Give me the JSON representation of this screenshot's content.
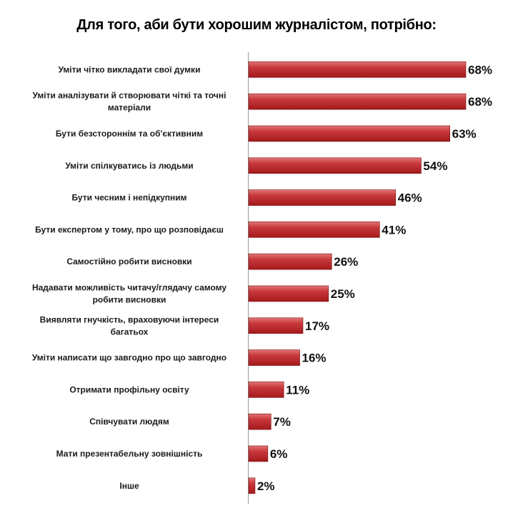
{
  "chart_data": {
    "type": "bar",
    "orientation": "horizontal",
    "title": "Для того, аби бути хорошим журналістом, потрібно:",
    "categories": [
      "Уміти чітко викладати свої думки",
      "Уміти аналізувати й створювати чіткі та точні матеріали",
      "Бути безстороннім та об'єктивним",
      "Уміти спілкуватись із людьми",
      "Бути чесним і непідкупним",
      "Бути експертом у тому, про що розповідаєш",
      "Самостійно робити висновки",
      "Надавати можливість читачу/глядачу самому робити висновки",
      "Виявляти гнучкість, враховуючи інтереси багатьох",
      "Уміти написати що завгодно про що завгодно",
      "Отримати профільну освіту",
      "Співчувати людям",
      "Мати презентабельну зовнішність",
      "Інше"
    ],
    "label_lines": [
      [
        "Уміти чітко викладати свої думки"
      ],
      [
        "Уміти аналізувати й створювати чіткі та точні",
        "матеріали"
      ],
      [
        "Бути безстороннім та об'єктивним"
      ],
      [
        "Уміти спілкуватись із людьми"
      ],
      [
        "Бути чесним і непідкупним"
      ],
      [
        "Бути експертом у тому, про що розповідаєш"
      ],
      [
        "Самостійно робити висновки"
      ],
      [
        "Надавати можливість читачу/глядачу самому",
        "робити висновки"
      ],
      [
        "Виявляти гнучкість, враховуючи інтереси",
        "багатьох"
      ],
      [
        "Уміти написати що завгодно про що завгодно"
      ],
      [
        "Отримати профільну освіту"
      ],
      [
        "Співчувати людям"
      ],
      [
        "Мати презентабельну зовнішність"
      ],
      [
        "Інше"
      ]
    ],
    "values": [
      68,
      68,
      63,
      54,
      46,
      41,
      26,
      25,
      17,
      16,
      11,
      7,
      6,
      2
    ],
    "value_labels": [
      "68%",
      "68%",
      "63%",
      "54%",
      "46%",
      "41%",
      "26%",
      "25%",
      "17%",
      "16%",
      "11%",
      "7%",
      "6%",
      "2%"
    ],
    "unit": "%",
    "xlim": [
      0,
      70
    ],
    "grid": false,
    "legend": "none",
    "bar_color": "#c0282d",
    "bar_highlight_color": "#e06a6a"
  }
}
